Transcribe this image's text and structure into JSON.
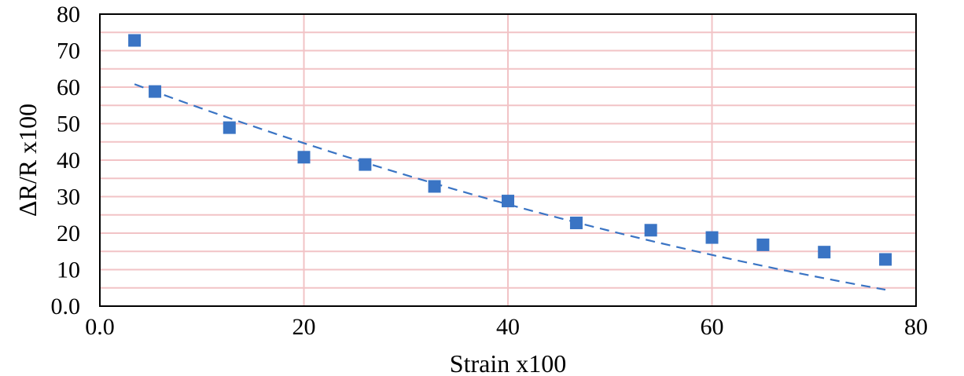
{
  "chart_data": {
    "type": "scatter",
    "title": "",
    "xlabel": "Strain x100",
    "ylabel": "ΔR/R x100",
    "xlim": [
      0,
      80
    ],
    "ylim": [
      0,
      80
    ],
    "grid": true,
    "xticks": [
      {
        "value": 0,
        "label": "0.0"
      },
      {
        "value": 20,
        "label": "20"
      },
      {
        "value": 40,
        "label": "40"
      },
      {
        "value": 60,
        "label": "60"
      },
      {
        "value": 80,
        "label": "80"
      }
    ],
    "yticks": [
      {
        "value": 0,
        "label": "0.0"
      },
      {
        "value": 10,
        "label": "10"
      },
      {
        "value": 20,
        "label": "20"
      },
      {
        "value": 30,
        "label": "30"
      },
      {
        "value": 40,
        "label": "40"
      },
      {
        "value": 50,
        "label": "50"
      },
      {
        "value": 60,
        "label": "60"
      },
      {
        "value": 70,
        "label": "70"
      },
      {
        "value": 80,
        "label": "80"
      }
    ],
    "series": [
      {
        "points": [
          [
            3.4,
            72.8
          ],
          [
            5.4,
            58.8
          ],
          [
            12.7,
            48.9
          ],
          [
            20.0,
            40.8
          ],
          [
            26.0,
            38.8
          ],
          [
            32.8,
            32.8
          ],
          [
            40.0,
            28.8
          ],
          [
            46.7,
            22.8
          ],
          [
            54.0,
            20.8
          ],
          [
            60.0,
            18.8
          ],
          [
            65.0,
            16.8
          ],
          [
            71.0,
            14.8
          ],
          [
            77.0,
            12.8
          ]
        ]
      }
    ],
    "trendline": {
      "style": "dashed",
      "points": [
        [
          3.4,
          60.8
        ],
        [
          40.0,
          27.9
        ],
        [
          77.0,
          4.5
        ]
      ]
    },
    "colors": {
      "marker": "#3a74c4",
      "trendline": "#3a74c4",
      "grid": "#f2c3c6",
      "axis": "#000000"
    }
  }
}
